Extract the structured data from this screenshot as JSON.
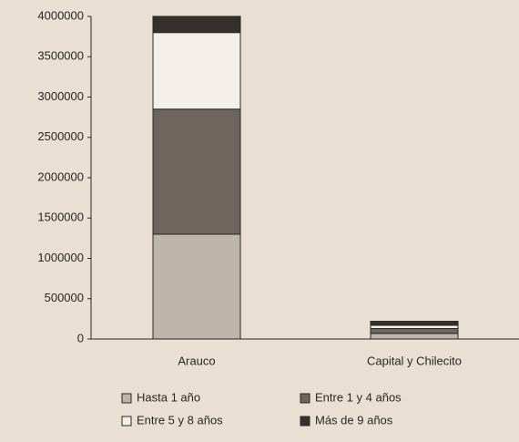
{
  "chart_data": {
    "type": "stacked_bar",
    "categories": [
      "Arauco",
      "Capital y Chilecito"
    ],
    "series": [
      {
        "name": "Hasta 1 año",
        "color": "#bdb5aa",
        "values": [
          1300000,
          70000
        ]
      },
      {
        "name": "Entre 1 y 4 años",
        "color": "#6e665e",
        "values": [
          1550000,
          60000
        ]
      },
      {
        "name": "Entre 5 y 8 años",
        "color": "#f4efe8",
        "values": [
          950000,
          40000
        ]
      },
      {
        "name": "Más de 9 años",
        "color": "#35302b",
        "values": [
          200000,
          50000
        ]
      }
    ],
    "ylim": [
      0,
      4000000
    ],
    "yticks": [
      0,
      500000,
      1000000,
      1500000,
      2000000,
      2500000,
      3000000,
      3500000,
      4000000
    ],
    "grid": false
  }
}
